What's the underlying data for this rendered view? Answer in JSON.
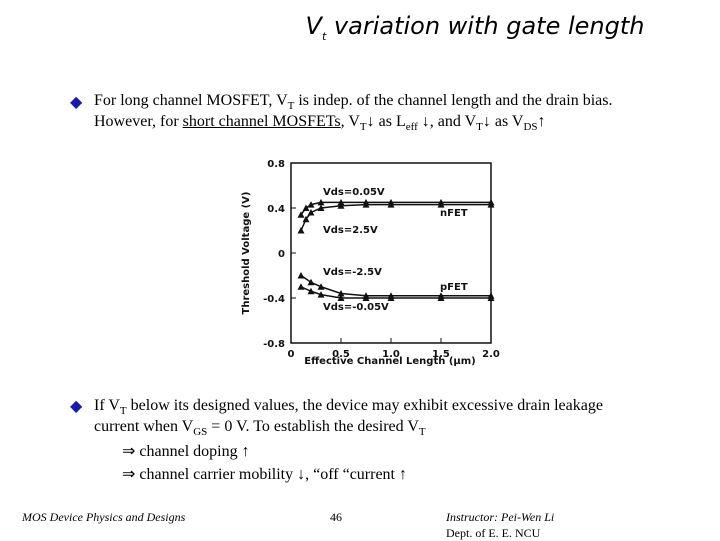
{
  "title": [
    {
      "t": "V"
    },
    {
      "t": "t",
      "s": "sub"
    },
    {
      "t": " variation with gate length"
    }
  ],
  "bullets": [
    {
      "lines": [
        [
          {
            "t": "For long channel MOSFET, V"
          },
          {
            "t": "T",
            "s": "sub"
          },
          {
            "t": " is indep. of the channel length and the drain bias."
          }
        ],
        [
          {
            "t": "However, for "
          },
          {
            "t": "short channel MOSFETs",
            "s": "u"
          },
          {
            "t": ", V"
          },
          {
            "t": "T",
            "s": "sub"
          },
          {
            "t": "↓ as L"
          },
          {
            "t": "eff",
            "s": "sub"
          },
          {
            "t": " ↓, and V"
          },
          {
            "t": "T",
            "s": "sub"
          },
          {
            "t": "↓ as V"
          },
          {
            "t": "DS",
            "s": "sub"
          },
          {
            "t": "↑"
          }
        ]
      ]
    },
    {
      "lines": [
        [
          {
            "t": "If V"
          },
          {
            "t": "T",
            "s": "sub"
          },
          {
            "t": " below its designed values, the device may exhibit excessive drain leakage"
          }
        ],
        [
          {
            "t": "current when V"
          },
          {
            "t": "GS",
            "s": "sub"
          },
          {
            "t": " = 0 V. To establish the desired V"
          },
          {
            "t": "T",
            "s": "sub"
          }
        ],
        [
          {
            "t": "⇒ channel doping ↑"
          }
        ],
        [
          {
            "t": "⇒ channel carrier mobility ↓,  “off “current ↑"
          }
        ]
      ]
    }
  ],
  "footer": {
    "left": "MOS Device Physics and Designs",
    "page": "46",
    "instructor": "Instructor: Pei-Wen Li",
    "dept": "Dept. of E. E. NCU"
  },
  "chart_data": {
    "type": "line",
    "x_label": "Effective Channel Length (μm)",
    "y_label": "Threshold Voltage (V)",
    "xlim": [
      0,
      2
    ],
    "xticks": [
      0,
      0.5,
      {
        "value": 1,
        "label": "1.0"
      },
      1.5,
      {
        "value": 2,
        "label": "2.0"
      }
    ],
    "ylim": [
      -0.8,
      0.8
    ],
    "yticks": [
      0.8,
      0.4,
      0,
      -0.4,
      -0.8
    ],
    "annotations": [
      "nFET",
      "pFET"
    ],
    "series": [
      {
        "name": "Vds=0.05V",
        "color": "#111111",
        "x": [
          0.1,
          0.15,
          0.2,
          0.3,
          0.5,
          0.75,
          1.0,
          1.5,
          2.0
        ],
        "values": [
          0.34,
          0.4,
          0.43,
          0.45,
          0.45,
          0.45,
          0.45,
          0.45,
          0.45
        ]
      },
      {
        "name": "Vds=2.5V",
        "color": "#111111",
        "x": [
          0.1,
          0.15,
          0.2,
          0.3,
          0.5,
          0.75,
          1.0,
          1.5,
          2.0
        ],
        "values": [
          0.2,
          0.3,
          0.36,
          0.4,
          0.42,
          0.43,
          0.43,
          0.43,
          0.43
        ]
      },
      {
        "name": "Vds=-2.5V",
        "color": "#111111",
        "x": [
          0.1,
          0.2,
          0.3,
          0.5,
          0.75,
          1.0,
          1.5,
          2.0
        ],
        "values": [
          -0.2,
          -0.26,
          -0.3,
          -0.36,
          -0.38,
          -0.38,
          -0.38,
          -0.38
        ]
      },
      {
        "name": "Vds=-0.05V",
        "color": "#111111",
        "x": [
          0.1,
          0.2,
          0.3,
          0.5,
          0.75,
          1.0,
          1.5,
          2.0
        ],
        "values": [
          -0.3,
          -0.34,
          -0.37,
          -0.4,
          -0.4,
          -0.4,
          -0.4,
          -0.4
        ]
      }
    ]
  }
}
